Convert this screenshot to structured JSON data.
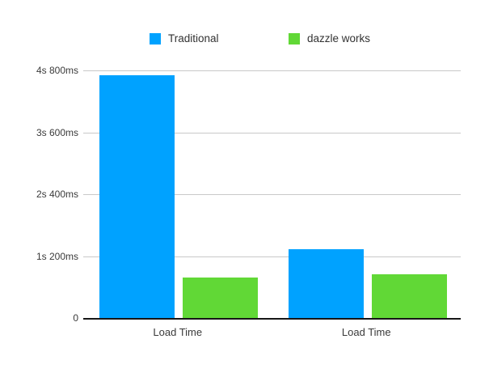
{
  "chart_data": {
    "type": "bar",
    "title": "",
    "xlabel": "",
    "ylabel": "",
    "unit": "ms",
    "categories": [
      "Load Time",
      "Load Time"
    ],
    "series": [
      {
        "name": "Traditional",
        "color": "#00A2FF",
        "values": [
          4700,
          1330
        ]
      },
      {
        "name": "dazzle works",
        "color": "#61D836",
        "values": [
          780,
          850
        ]
      }
    ],
    "ylim": [
      0,
      4800
    ],
    "yticks": [
      {
        "label": "0",
        "value": 0
      },
      {
        "label": "1s 200ms",
        "value": 1200
      },
      {
        "label": "2s 400ms",
        "value": 2400
      },
      {
        "label": "3s 600ms",
        "value": 3600
      },
      {
        "label": "4s 800ms",
        "value": 4800
      }
    ],
    "grid": true,
    "legend_position": "top"
  },
  "colors": {
    "grid": "#c9c9c9",
    "axis": "#161616",
    "text": "#3a3a3a",
    "background": "#ffffff"
  }
}
